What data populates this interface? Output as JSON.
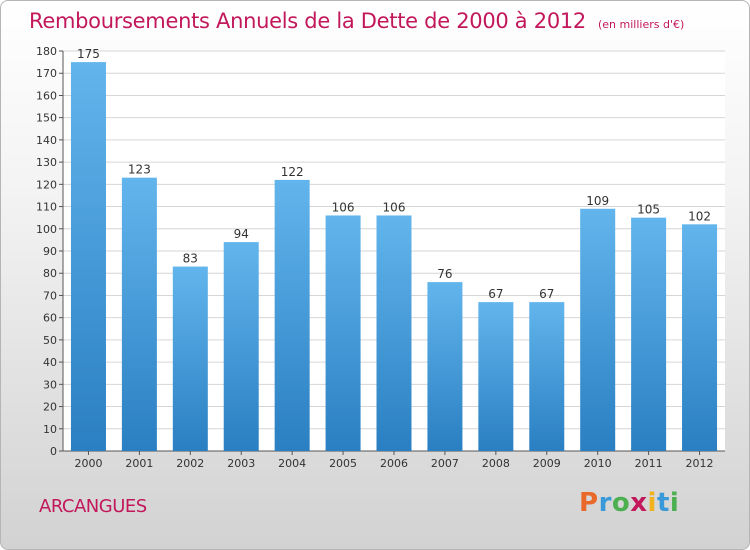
{
  "title": "Remboursements Annuels de la Dette de 2000 à 2012",
  "unit": "(en milliers d'€)",
  "town": "ARCANGUES",
  "logo": {
    "text": "Proxiti",
    "letters": [
      {
        "ch": "P",
        "color": "#e8692a"
      },
      {
        "ch": "r",
        "color": "#3a9ad9"
      },
      {
        "ch": "o",
        "color": "#4caf50"
      },
      {
        "ch": "x",
        "color": "#c2185b"
      },
      {
        "ch": "i",
        "color": "#f2b21b"
      },
      {
        "ch": "t",
        "color": "#3a9ad9"
      },
      {
        "ch": "i",
        "color": "#4caf50"
      }
    ]
  },
  "colors": {
    "bar_top": "#62b5ec",
    "bar_bottom": "#2a7fc2",
    "grid": "#d6d6d6",
    "accent": "#c2185b"
  },
  "chart_data": {
    "type": "bar",
    "title": "Remboursements Annuels de la Dette de 2000 à 2012",
    "subtitle": "(en milliers d'€)",
    "categories": [
      "2000",
      "2001",
      "2002",
      "2003",
      "2004",
      "2005",
      "2006",
      "2007",
      "2008",
      "2009",
      "2010",
      "2011",
      "2012"
    ],
    "values": [
      175,
      123,
      83,
      94,
      122,
      106,
      106,
      76,
      67,
      67,
      109,
      105,
      102
    ],
    "ylim": [
      0,
      180
    ],
    "ytick_step": 10,
    "grid": true,
    "data_labels": true
  }
}
